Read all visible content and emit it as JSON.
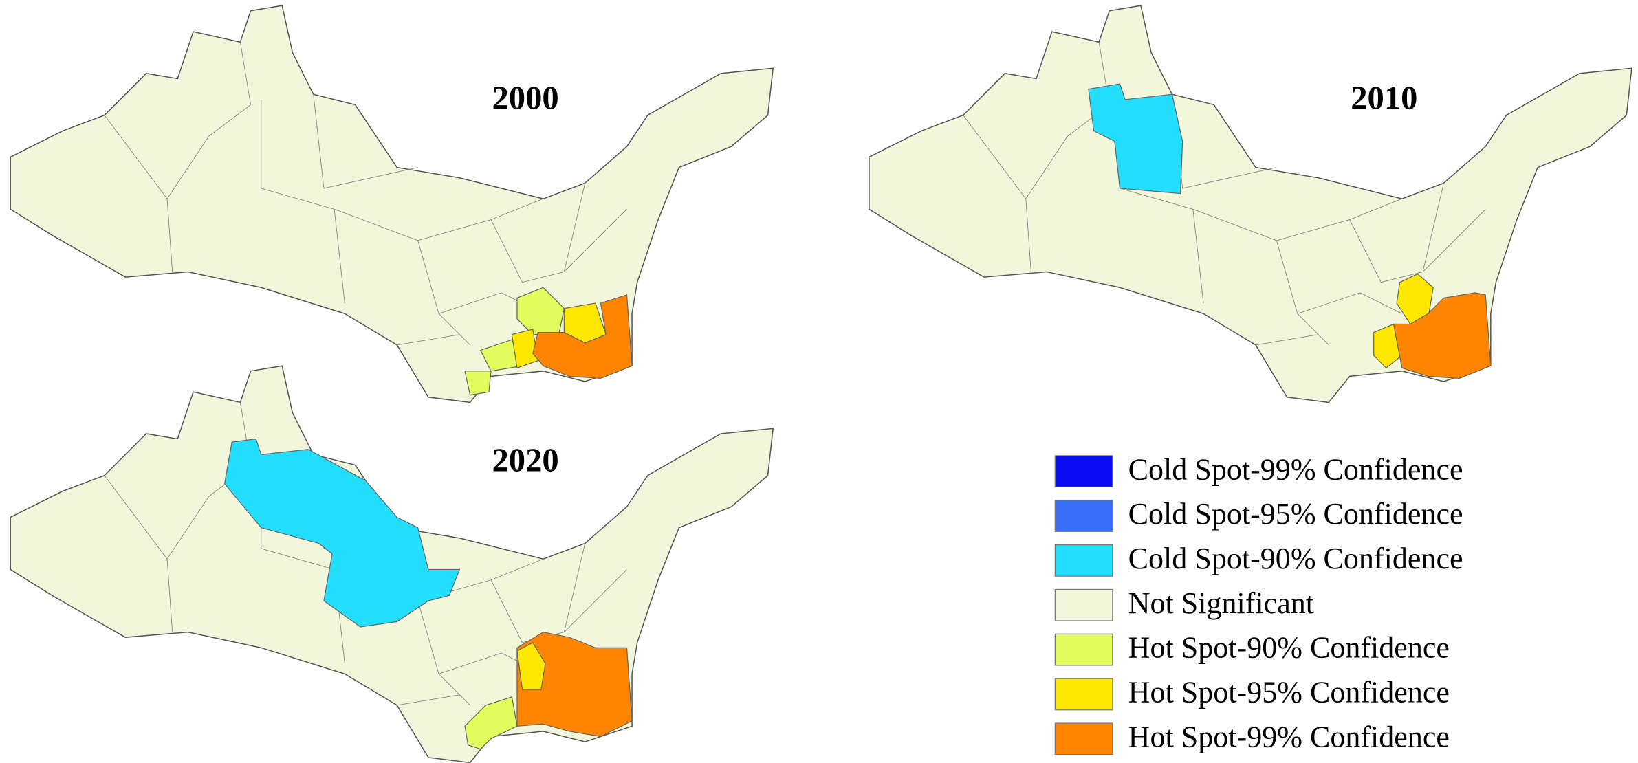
{
  "panels": [
    {
      "title": "2000"
    },
    {
      "title": "2010"
    },
    {
      "title": "2020"
    }
  ],
  "legend": [
    {
      "label": "Cold Spot-99% Confidence",
      "color": "#0a0cf2"
    },
    {
      "label": "Cold Spot-95% Confidence",
      "color": "#3a6ff7"
    },
    {
      "label": "Cold Spot-90% Confidence",
      "color": "#22ddfb"
    },
    {
      "label": "Not Significant",
      "color": "#f2f7dc"
    },
    {
      "label": "Hot Spot-90% Confidence",
      "color": "#e2fb5d"
    },
    {
      "label": "Hot Spot-95% Confidence",
      "color": "#ffe800"
    },
    {
      "label": "Hot Spot-99% Confidence",
      "color": "#ff8400"
    }
  ]
}
